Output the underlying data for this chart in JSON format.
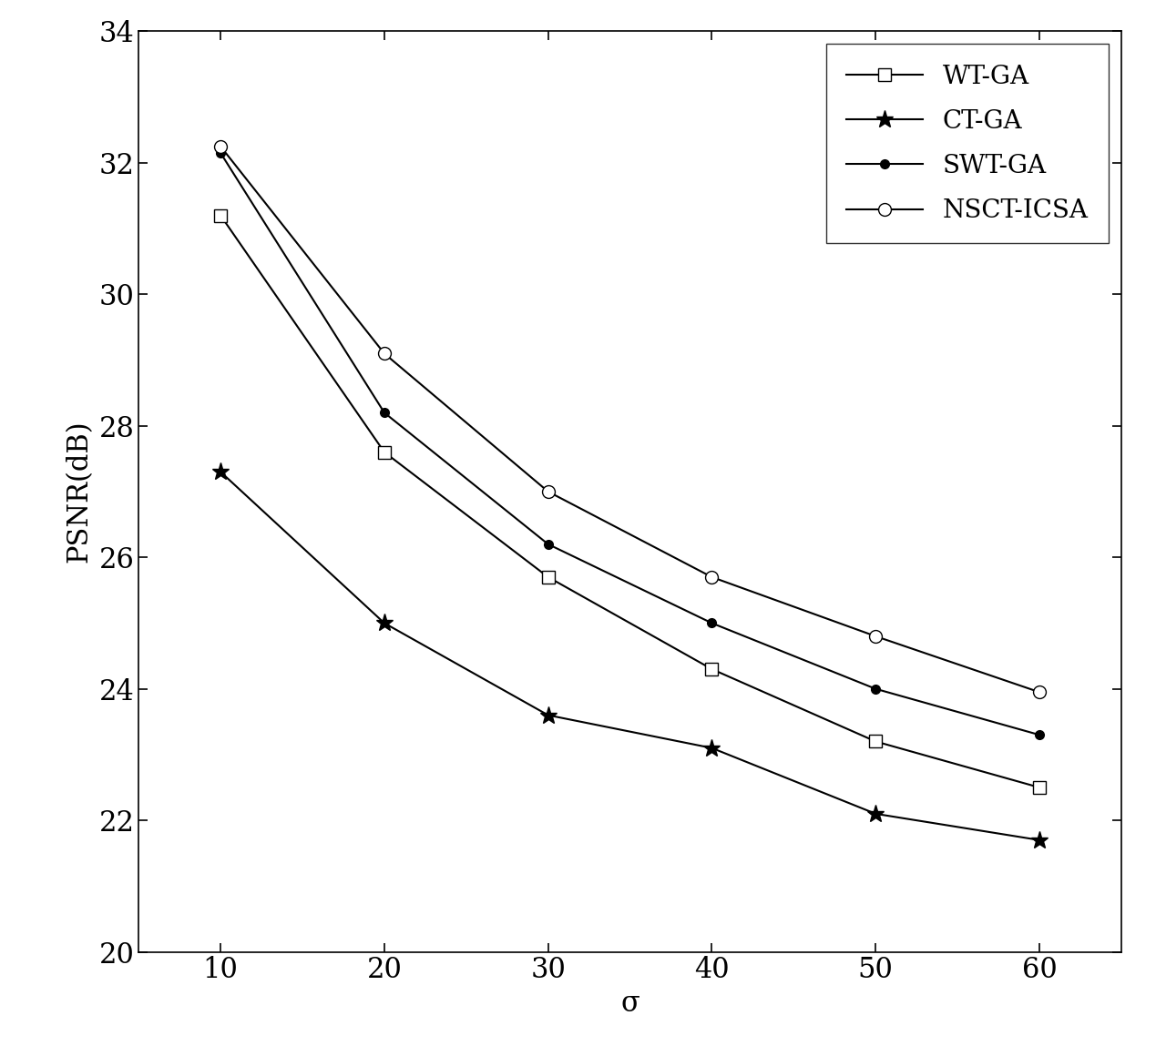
{
  "x": [
    10,
    20,
    30,
    40,
    50,
    60
  ],
  "series": [
    {
      "label": "WT-GA",
      "y": [
        31.2,
        27.6,
        25.7,
        24.3,
        23.2,
        22.5
      ],
      "marker": "s",
      "color": "#000000",
      "linestyle": "-",
      "markersize": 10,
      "markerfacecolor": "white",
      "linewidth": 1.5
    },
    {
      "label": "CT-GA",
      "y": [
        27.3,
        25.0,
        23.6,
        23.1,
        22.1,
        21.7
      ],
      "marker": "*",
      "color": "#000000",
      "linestyle": "-",
      "markersize": 14,
      "markerfacecolor": "black",
      "linewidth": 1.5
    },
    {
      "label": "SWT-GA",
      "y": [
        32.15,
        28.2,
        26.2,
        25.0,
        24.0,
        23.3
      ],
      "marker": ".",
      "color": "#000000",
      "linestyle": "-",
      "markersize": 14,
      "markerfacecolor": "black",
      "linewidth": 1.5
    },
    {
      "label": "NSCT-ICSA",
      "y": [
        32.25,
        29.1,
        27.0,
        25.7,
        24.8,
        23.95
      ],
      "marker": "o",
      "color": "#000000",
      "linestyle": "-",
      "markersize": 10,
      "markerfacecolor": "white",
      "linewidth": 1.5
    }
  ],
  "xlabel": "σ",
  "ylabel": "PSNR(dB)",
  "xlim": [
    5,
    65
  ],
  "ylim": [
    20,
    34
  ],
  "yticks": [
    20,
    22,
    24,
    26,
    28,
    30,
    32,
    34
  ],
  "xticks": [
    10,
    20,
    30,
    40,
    50,
    60
  ],
  "background_color": "#ffffff",
  "legend_loc": "upper right",
  "label_fontsize": 22,
  "tick_fontsize": 22,
  "legend_fontsize": 20
}
